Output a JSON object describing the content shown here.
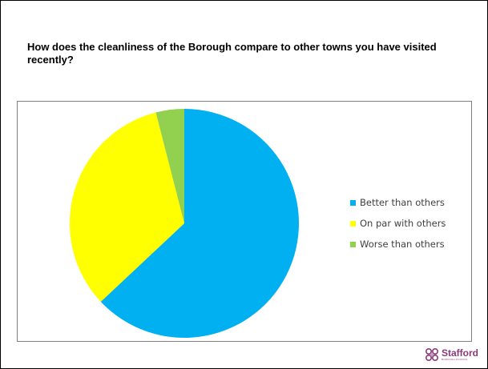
{
  "slide": {
    "question": "How does the cleanliness of the Borough compare to other towns you have visited recently?"
  },
  "chart_data": {
    "type": "pie",
    "title": "",
    "categories": [
      "Better than others",
      "On par with others",
      "Worse than others"
    ],
    "values": [
      63,
      33,
      4
    ],
    "colors": [
      "#00b0f0",
      "#ffff00",
      "#92d050"
    ],
    "start_angle_deg": 0,
    "direction": "clockwise",
    "legend_position": "right"
  },
  "logo": {
    "name": "Stafford",
    "subtitle": "BOROUGH COUNCIL",
    "accent": "#8a3a7a"
  }
}
